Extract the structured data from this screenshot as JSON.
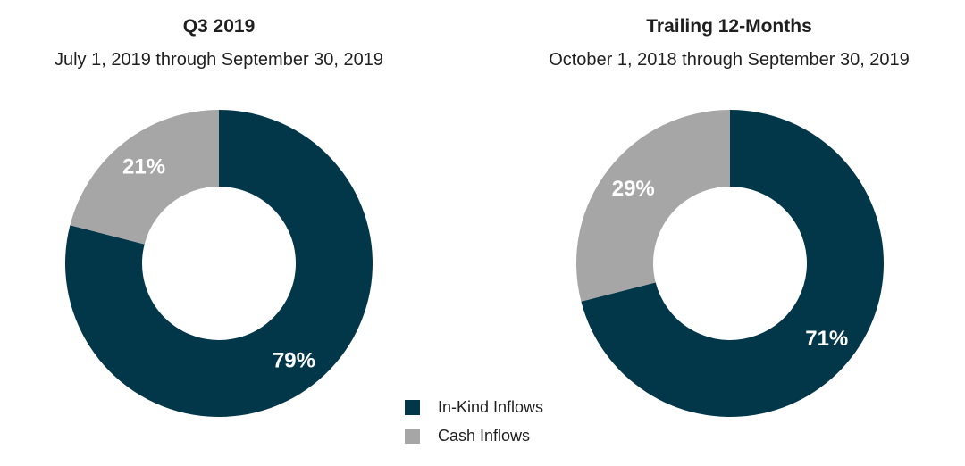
{
  "chart_data": [
    {
      "type": "pie",
      "variant": "donut",
      "title": "Q3 2019",
      "subtitle": "July 1, 2019 through September 30, 2019",
      "categories": [
        "In-Kind Inflows",
        "Cash Inflows"
      ],
      "values": [
        79,
        21
      ],
      "labels": [
        "79%",
        "21%"
      ],
      "colors": [
        "#02374a",
        "#a6a6a6"
      ]
    },
    {
      "type": "pie",
      "variant": "donut",
      "title": "Trailing 12-Months",
      "subtitle": "October 1, 2018 through September 30, 2019",
      "categories": [
        "In-Kind Inflows",
        "Cash Inflows"
      ],
      "values": [
        71,
        29
      ],
      "labels": [
        "71%",
        "29%"
      ],
      "colors": [
        "#02374a",
        "#a6a6a6"
      ]
    }
  ],
  "legend": {
    "placement": "bottom-center",
    "items": [
      {
        "label": "In-Kind Inflows",
        "color": "#02374a"
      },
      {
        "label": "Cash Inflows",
        "color": "#a6a6a6"
      }
    ]
  }
}
